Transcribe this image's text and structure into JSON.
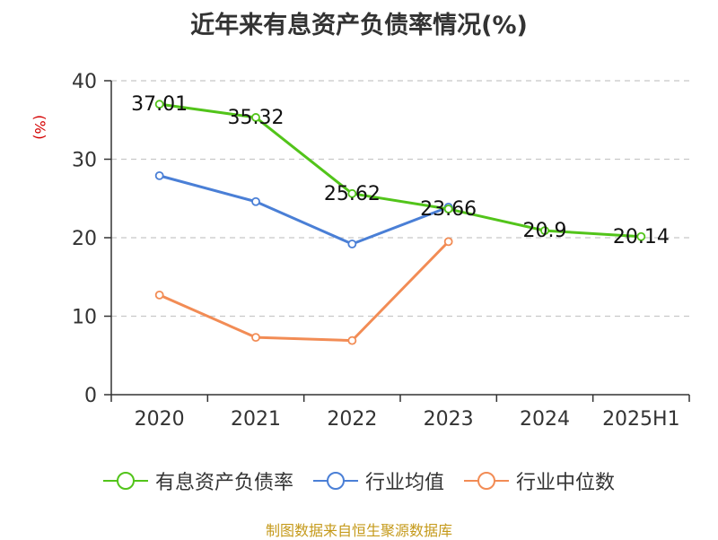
{
  "title": "近年来有息资产负债率情况(%)",
  "y_unit": "(%)",
  "source": "制图数据来自恒生聚源数据库",
  "chart_data": {
    "type": "line",
    "categories": [
      "2020",
      "2021",
      "2022",
      "2023",
      "2024",
      "2025H1"
    ],
    "ylim": [
      0,
      40
    ],
    "yticks": [
      "0",
      "10",
      "20",
      "30",
      "40"
    ],
    "grid": true,
    "legend_position": "bottom",
    "series": [
      {
        "name": "有息资产负债率",
        "color": "#52c41a",
        "values": [
          37.01,
          35.32,
          25.62,
          23.66,
          20.9,
          20.14
        ],
        "labels": [
          "37.01",
          "35.32",
          "25.62",
          "23.66",
          "20.9",
          "20.14"
        ]
      },
      {
        "name": "行业均值",
        "color": "#4a7fd6",
        "values": [
          27.9,
          24.6,
          19.2,
          23.9,
          null,
          null
        ]
      },
      {
        "name": "行业中位数",
        "color": "#f28c55",
        "values": [
          12.7,
          7.3,
          6.9,
          19.5,
          null,
          null
        ]
      }
    ]
  }
}
